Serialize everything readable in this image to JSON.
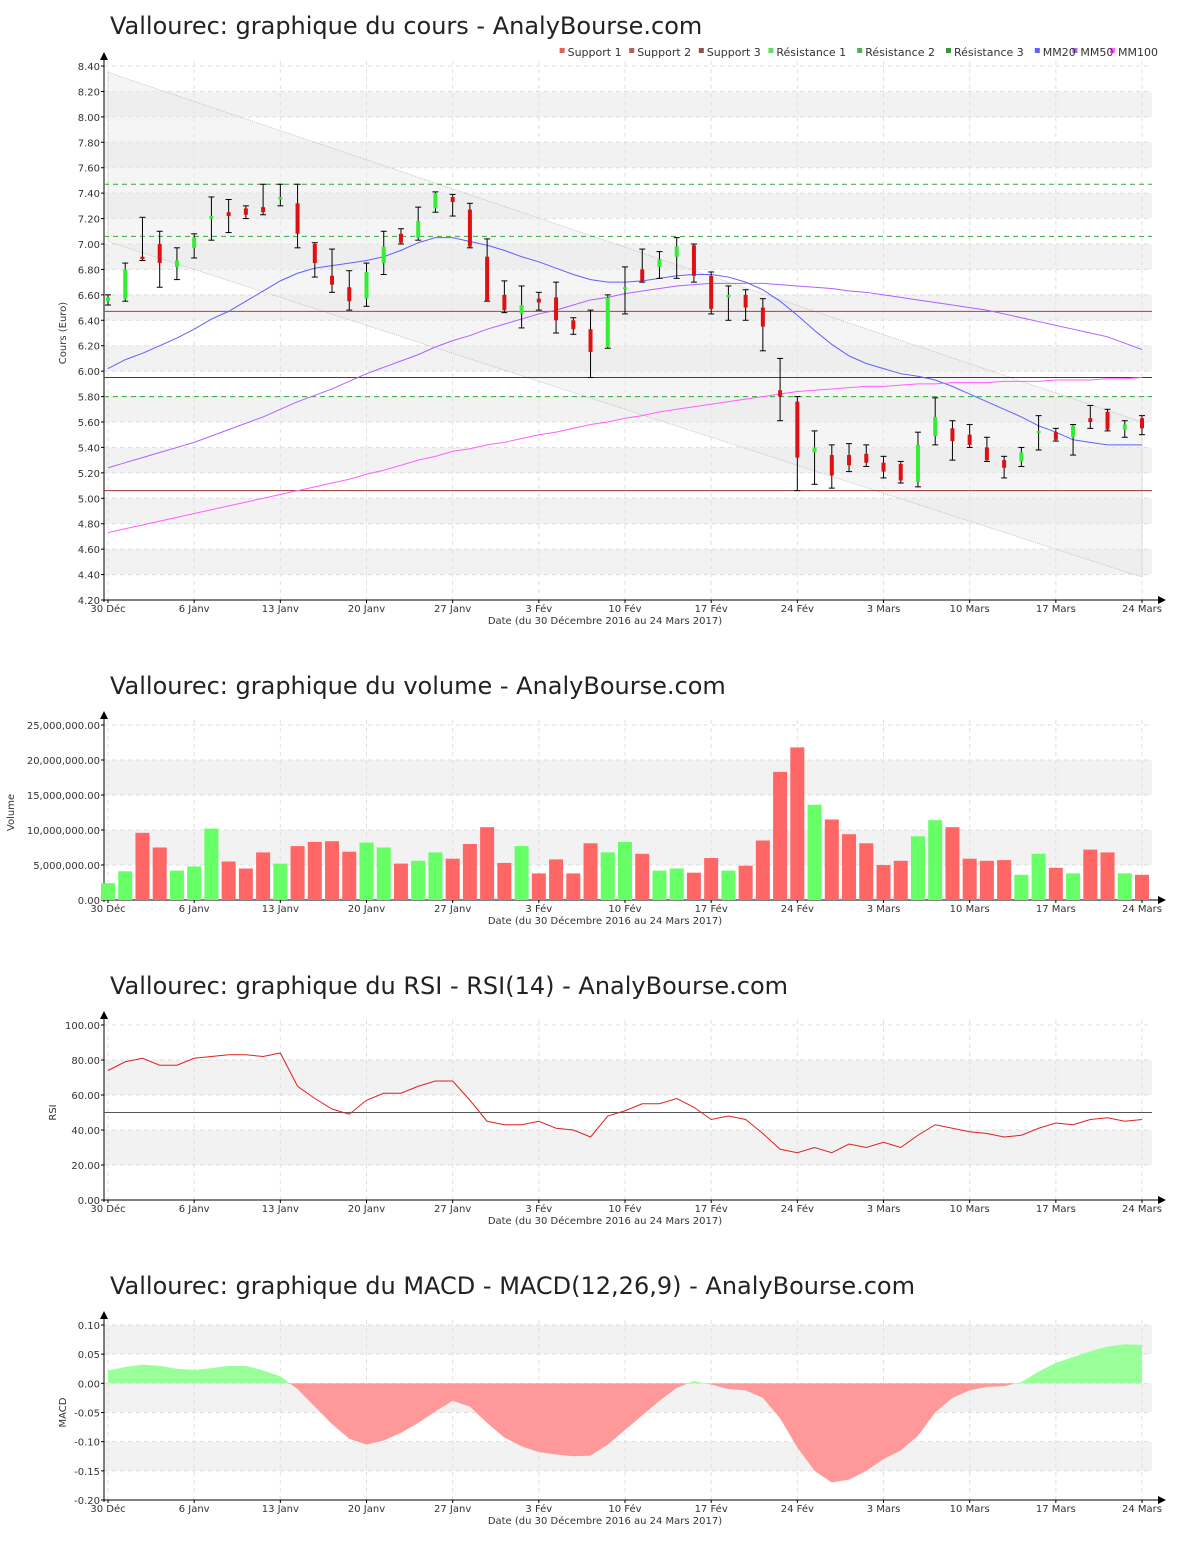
{
  "chart_data": [
    {
      "type": "candlestick",
      "title": "Vallourec: graphique du cours - AnalyBourse.com",
      "xlabel": "Date (du 30 Décembre 2016 au 24 Mars 2017)",
      "ylabel": "Cours (Euro)",
      "ylim": [
        4.2,
        8.4
      ],
      "yticks": [
        "4.20",
        "4.40",
        "4.60",
        "4.80",
        "5.00",
        "5.20",
        "5.40",
        "5.60",
        "5.80",
        "6.00",
        "6.20",
        "6.40",
        "6.60",
        "6.80",
        "7.00",
        "7.20",
        "7.40",
        "7.60",
        "7.80",
        "8.00",
        "8.20",
        "8.40"
      ],
      "xtick_labels": [
        {
          "i": 0,
          "label": "30 Déc"
        },
        {
          "i": 5,
          "label": "6 Janv"
        },
        {
          "i": 10,
          "label": "13 Janv"
        },
        {
          "i": 15,
          "label": "20 Janv"
        },
        {
          "i": 20,
          "label": "27 Janv"
        },
        {
          "i": 25,
          "label": "3 Fév"
        },
        {
          "i": 30,
          "label": "10 Fév"
        },
        {
          "i": 35,
          "label": "17 Fév"
        },
        {
          "i": 40,
          "label": "24 Fév"
        },
        {
          "i": 45,
          "label": "3 Mars"
        },
        {
          "i": 50,
          "label": "10 Mars"
        },
        {
          "i": 55,
          "label": "17 Mars"
        },
        {
          "i": 60,
          "label": "24 Mars"
        }
      ],
      "legend": [
        "Support 1",
        "Support 2",
        "Support 3",
        "Résistance 1",
        "Résistance 2",
        "Résistance 3",
        "MM20",
        "MM50",
        "MM100"
      ],
      "legend_colors": [
        "#e06060",
        "#b06060",
        "#905050",
        "#60e060",
        "#50b050",
        "#409040",
        "#6060ff",
        "#b060ff",
        "#ff60ff"
      ],
      "legend_position": "top-right",
      "levels": [
        {
          "name": "Support 1",
          "value": 6.47,
          "color": "#cc3333",
          "style": "solid"
        },
        {
          "name": "Support 2",
          "value": 5.06,
          "color": "#993333",
          "style": "solid"
        },
        {
          "name": "Support 3",
          "value": 5.95,
          "color": "#663333",
          "style": "solid"
        },
        {
          "name": "Résistance 1",
          "value": 7.47,
          "color": "#33aa33",
          "style": "dashed"
        },
        {
          "name": "Résistance 2",
          "value": 7.06,
          "color": "#33aa33",
          "style": "dashed"
        },
        {
          "name": "Résistance 3",
          "value": 5.8,
          "color": "#33aa33",
          "style": "dashed"
        }
      ],
      "candles": [
        [
          6.55,
          6.6,
          6.52,
          6.58
        ],
        [
          6.57,
          6.85,
          6.55,
          6.8
        ],
        [
          6.9,
          7.21,
          6.87,
          6.88
        ],
        [
          7.0,
          7.1,
          6.66,
          6.85
        ],
        [
          6.82,
          6.97,
          6.72,
          6.87
        ],
        [
          6.97,
          7.08,
          6.89,
          7.05
        ],
        [
          7.2,
          7.37,
          7.03,
          7.22
        ],
        [
          7.25,
          7.35,
          7.09,
          7.22
        ],
        [
          7.28,
          7.3,
          7.2,
          7.23
        ],
        [
          7.29,
          7.47,
          7.23,
          7.25
        ],
        [
          7.35,
          7.47,
          7.3,
          7.37
        ],
        [
          7.32,
          7.47,
          6.97,
          7.08
        ],
        [
          7.0,
          7.01,
          6.74,
          6.85
        ],
        [
          6.75,
          6.96,
          6.62,
          6.68
        ],
        [
          6.66,
          6.79,
          6.48,
          6.55
        ],
        [
          6.57,
          6.85,
          6.51,
          6.78
        ],
        [
          6.85,
          7.1,
          6.76,
          6.98
        ],
        [
          7.08,
          7.12,
          7.0,
          7.01
        ],
        [
          7.05,
          7.29,
          7.03,
          7.18
        ],
        [
          7.28,
          7.41,
          7.25,
          7.4
        ],
        [
          7.37,
          7.39,
          7.22,
          7.33
        ],
        [
          7.27,
          7.32,
          6.97,
          6.98
        ],
        [
          6.9,
          7.04,
          6.55,
          6.55
        ],
        [
          6.6,
          6.71,
          6.46,
          6.48
        ],
        [
          6.45,
          6.67,
          6.34,
          6.52
        ],
        [
          6.57,
          6.62,
          6.48,
          6.54
        ],
        [
          6.58,
          6.7,
          6.3,
          6.4
        ],
        [
          6.4,
          6.42,
          6.29,
          6.33
        ],
        [
          6.33,
          6.48,
          5.95,
          6.15
        ],
        [
          6.19,
          6.6,
          6.18,
          6.58
        ],
        [
          6.65,
          6.82,
          6.45,
          6.66
        ],
        [
          6.8,
          6.96,
          6.7,
          6.71
        ],
        [
          6.82,
          6.94,
          6.73,
          6.88
        ],
        [
          6.9,
          7.05,
          6.73,
          6.98
        ],
        [
          6.99,
          7.0,
          6.7,
          6.75
        ],
        [
          6.75,
          6.78,
          6.45,
          6.49
        ],
        [
          6.58,
          6.67,
          6.4,
          6.6
        ],
        [
          6.6,
          6.64,
          6.4,
          6.5
        ],
        [
          6.5,
          6.57,
          6.16,
          6.35
        ],
        [
          5.85,
          6.1,
          5.61,
          5.8
        ],
        [
          5.76,
          5.8,
          5.06,
          5.32
        ],
        [
          5.36,
          5.53,
          5.11,
          5.4
        ],
        [
          5.34,
          5.42,
          5.08,
          5.18
        ],
        [
          5.34,
          5.43,
          5.21,
          5.26
        ],
        [
          5.35,
          5.42,
          5.25,
          5.28
        ],
        [
          5.28,
          5.33,
          5.16,
          5.21
        ],
        [
          5.27,
          5.29,
          5.12,
          5.14
        ],
        [
          5.13,
          5.52,
          5.09,
          5.42
        ],
        [
          5.49,
          5.79,
          5.42,
          5.64
        ],
        [
          5.55,
          5.61,
          5.3,
          5.45
        ],
        [
          5.5,
          5.58,
          5.4,
          5.42
        ],
        [
          5.4,
          5.48,
          5.29,
          5.3
        ],
        [
          5.3,
          5.33,
          5.16,
          5.24
        ],
        [
          5.29,
          5.4,
          5.25,
          5.36
        ],
        [
          5.52,
          5.65,
          5.38,
          5.53
        ],
        [
          5.52,
          5.55,
          5.45,
          5.46
        ],
        [
          5.48,
          5.58,
          5.34,
          5.57
        ],
        [
          5.63,
          5.73,
          5.55,
          5.6
        ],
        [
          5.68,
          5.7,
          5.53,
          5.54
        ],
        [
          5.54,
          5.61,
          5.48,
          5.58
        ],
        [
          5.63,
          5.65,
          5.5,
          5.55
        ]
      ],
      "series": [
        {
          "name": "MM20",
          "color": "#6060ff",
          "values": [
            6.02,
            6.09,
            6.14,
            6.2,
            6.26,
            6.33,
            6.41,
            6.47,
            6.55,
            6.63,
            6.71,
            6.77,
            6.81,
            6.83,
            6.85,
            6.87,
            6.9,
            6.95,
            7.01,
            7.05,
            7.05,
            7.02,
            6.99,
            6.95,
            6.9,
            6.86,
            6.81,
            6.76,
            6.72,
            6.7,
            6.7,
            6.71,
            6.73,
            6.75,
            6.76,
            6.76,
            6.74,
            6.7,
            6.64,
            6.55,
            6.44,
            6.32,
            6.21,
            6.12,
            6.06,
            6.02,
            5.98,
            5.96,
            5.93,
            5.88,
            5.82,
            5.76,
            5.7,
            5.64,
            5.57,
            5.52,
            5.46,
            5.44,
            5.42,
            5.42,
            5.42
          ]
        },
        {
          "name": "MM50",
          "color": "#b060ff",
          "values": [
            5.24,
            5.28,
            5.32,
            5.36,
            5.4,
            5.44,
            5.49,
            5.54,
            5.59,
            5.64,
            5.7,
            5.76,
            5.81,
            5.86,
            5.92,
            5.98,
            6.03,
            6.08,
            6.13,
            6.19,
            6.24,
            6.28,
            6.33,
            6.37,
            6.41,
            6.45,
            6.48,
            6.52,
            6.56,
            6.58,
            6.61,
            6.63,
            6.65,
            6.67,
            6.68,
            6.69,
            6.69,
            6.69,
            6.69,
            6.68,
            6.67,
            6.66,
            6.65,
            6.63,
            6.62,
            6.6,
            6.58,
            6.56,
            6.54,
            6.52,
            6.5,
            6.48,
            6.45,
            6.42,
            6.39,
            6.36,
            6.33,
            6.3,
            6.27,
            6.22,
            6.17
          ]
        },
        {
          "name": "MM100",
          "color": "#ff60ff",
          "values": [
            4.73,
            4.76,
            4.79,
            4.82,
            4.85,
            4.88,
            4.91,
            4.94,
            4.97,
            5.0,
            5.03,
            5.06,
            5.09,
            5.12,
            5.15,
            5.19,
            5.22,
            5.26,
            5.3,
            5.33,
            5.37,
            5.39,
            5.42,
            5.44,
            5.47,
            5.5,
            5.52,
            5.55,
            5.58,
            5.6,
            5.63,
            5.65,
            5.68,
            5.7,
            5.72,
            5.74,
            5.76,
            5.78,
            5.8,
            5.82,
            5.84,
            5.85,
            5.86,
            5.87,
            5.88,
            5.88,
            5.89,
            5.9,
            5.9,
            5.91,
            5.91,
            5.91,
            5.92,
            5.92,
            5.92,
            5.93,
            5.93,
            5.93,
            5.94,
            5.94,
            5.95
          ]
        }
      ],
      "trend_channel": {
        "upper": [
          8.35,
          5.6
        ],
        "lower": [
          7.02,
          4.38
        ]
      },
      "band_color": "#f2f2f2"
    },
    {
      "type": "bar",
      "title": "Vallourec: graphique du volume - AnalyBourse.com",
      "xlabel": "Date (du 30 Décembre 2016 au 24 Mars 2017)",
      "ylabel": "Volume",
      "ylim": [
        0,
        25000000
      ],
      "yticks": [
        "0.00",
        "5,000,000.00",
        "10,000,000.00",
        "15,000,000.00",
        "20,000,000.00",
        "25,000,000.00"
      ],
      "values": [
        2400000,
        4100000,
        9600000,
        7500000,
        4200000,
        4800000,
        10200000,
        5500000,
        4500000,
        6800000,
        5200000,
        7700000,
        8300000,
        8400000,
        6900000,
        8200000,
        7500000,
        5200000,
        5600000,
        6800000,
        5900000,
        8000000,
        10400000,
        5300000,
        7700000,
        3800000,
        5800000,
        3800000,
        8100000,
        6800000,
        8300000,
        6600000,
        4200000,
        4500000,
        3900000,
        6000000,
        4200000,
        4900000,
        8500000,
        18300000,
        21800000,
        13600000,
        11500000,
        9400000,
        8100000,
        5000000,
        5600000,
        9100000,
        11400000,
        10400000,
        5900000,
        5600000,
        5700000,
        3600000,
        6600000,
        4600000,
        3800000,
        7200000,
        6800000,
        3800000,
        3600000
      ],
      "up_color": "#66ff66",
      "down_color": "#ff6666",
      "band_color": "#f2f2f2"
    },
    {
      "type": "line",
      "title": "Vallourec: graphique du RSI - RSI(14) - AnalyBourse.com",
      "xlabel": "Date (du 30 Décembre 2016 au 24 Mars 2017)",
      "ylabel": "RSI",
      "ylim": [
        0,
        100
      ],
      "yticks": [
        "0.00",
        "20.00",
        "40.00",
        "60.00",
        "80.00",
        "100.00"
      ],
      "reference_line": 50,
      "line_color": "#dd2222",
      "band_color": "#f2f2f2",
      "values": [
        74,
        79,
        81,
        77,
        77,
        81,
        82,
        83,
        83,
        82,
        84,
        65,
        58,
        52,
        49,
        57,
        61,
        61,
        65,
        68,
        68,
        57,
        45,
        43,
        43,
        45,
        41,
        40,
        36,
        48,
        51,
        55,
        55,
        58,
        53,
        46,
        48,
        46,
        38,
        29,
        27,
        30,
        27,
        32,
        30,
        33,
        30,
        37,
        43,
        41,
        39,
        38,
        36,
        37,
        41,
        44,
        43,
        46,
        47,
        45,
        46
      ]
    },
    {
      "type": "area",
      "title": "Vallourec: graphique du MACD - MACD(12,26,9) - AnalyBourse.com",
      "xlabel": "Date (du 30 Décembre 2016 au 24 Mars 2017)",
      "ylabel": "MACD",
      "ylim": [
        -0.2,
        0.1
      ],
      "yticks": [
        "-0.20",
        "-0.15",
        "-0.10",
        "-0.05",
        "0.00",
        "0.05",
        "0.10"
      ],
      "positive_color": "#99ff99",
      "negative_color": "#ff9999",
      "band_color": "#f2f2f2",
      "values": [
        0.022,
        0.028,
        0.032,
        0.03,
        0.025,
        0.023,
        0.026,
        0.03,
        0.03,
        0.022,
        0.012,
        -0.01,
        -0.04,
        -0.07,
        -0.095,
        -0.105,
        -0.098,
        -0.085,
        -0.068,
        -0.048,
        -0.03,
        -0.04,
        -0.068,
        -0.093,
        -0.108,
        -0.118,
        -0.122,
        -0.125,
        -0.124,
        -0.105,
        -0.08,
        -0.055,
        -0.03,
        -0.008,
        0.004,
        -0.002,
        -0.01,
        -0.012,
        -0.025,
        -0.06,
        -0.11,
        -0.15,
        -0.17,
        -0.165,
        -0.15,
        -0.13,
        -0.115,
        -0.09,
        -0.05,
        -0.025,
        -0.012,
        -0.006,
        -0.005,
        0.002,
        0.02,
        0.035,
        0.045,
        0.055,
        0.063,
        0.067,
        0.066
      ]
    }
  ]
}
